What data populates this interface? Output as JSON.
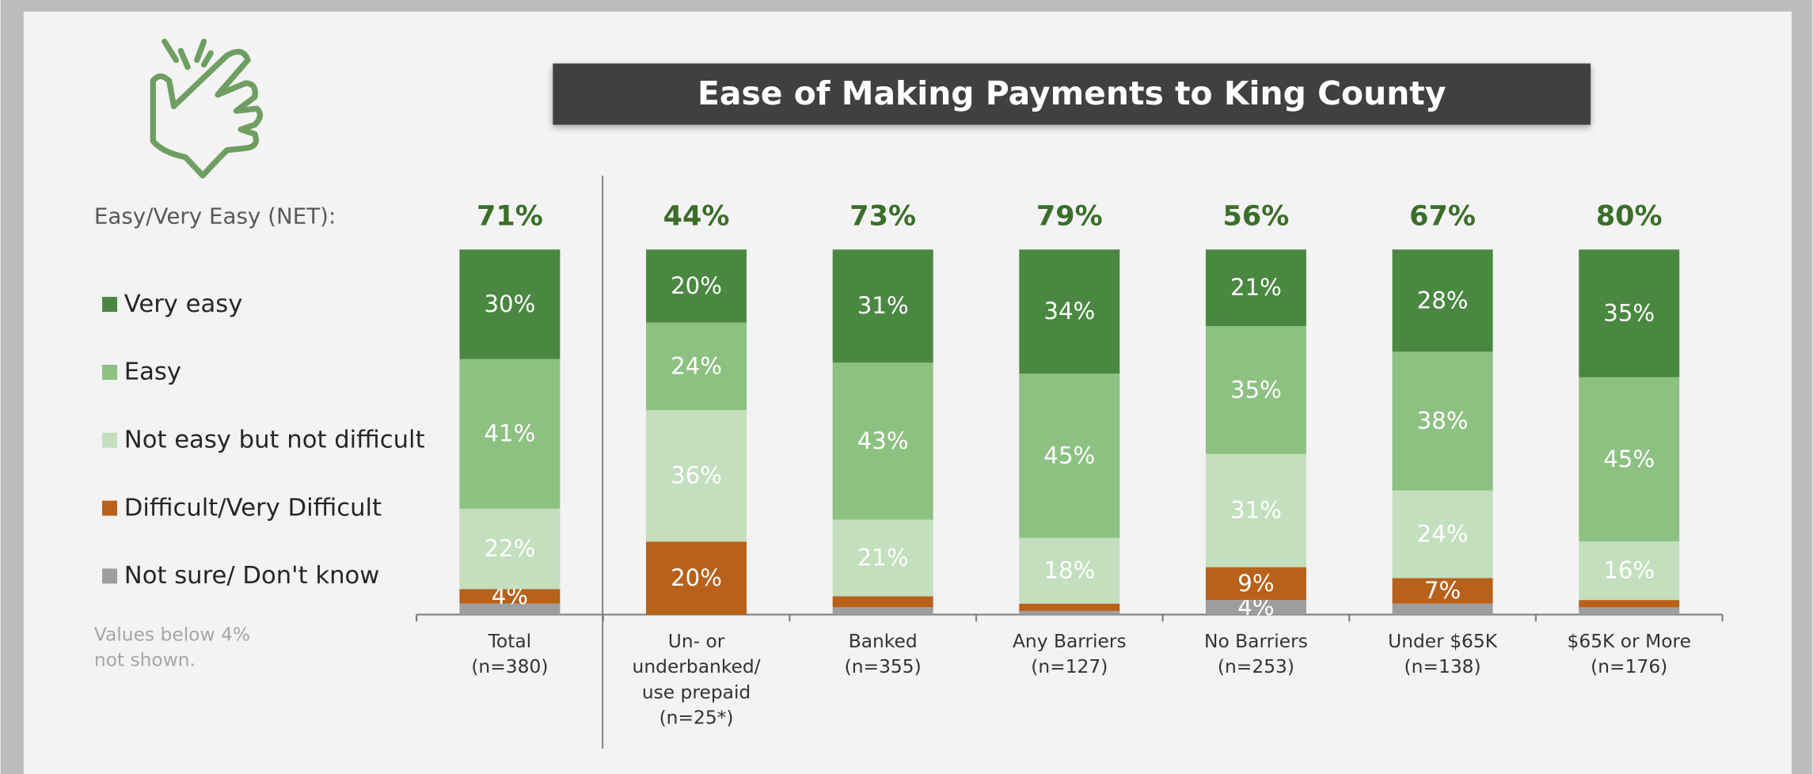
{
  "chart_data": {
    "type": "stacked_bar",
    "title": "Ease of Making Payments to King County",
    "categories": [
      [
        "Total",
        "(n=380)"
      ],
      [
        "Un- or",
        "underbanked/",
        "use prepaid",
        "(n=25*)"
      ],
      [
        "Banked",
        "(n=355)"
      ],
      [
        "Any Barriers",
        "(n=127)"
      ],
      [
        "No Barriers",
        "(n=253)"
      ],
      [
        "Under $65K",
        "(n=138)"
      ],
      [
        "$65K or More",
        "(n=176)"
      ]
    ],
    "series": [
      {
        "name": "Not sure/ Don't know",
        "color": "#9e9e9e",
        "values": [
          3,
          0,
          2,
          1,
          4,
          3,
          2
        ],
        "value_labels": [
          null,
          null,
          null,
          null,
          "4%",
          null,
          null
        ]
      },
      {
        "name": "Difficult/Very Difficult",
        "color": "#b8611a",
        "values": [
          4,
          20,
          3,
          2,
          9,
          7,
          2
        ],
        "value_labels": [
          "4%",
          "20%",
          null,
          null,
          "9%",
          "7%",
          null
        ]
      },
      {
        "name": "Not easy but not difficult",
        "color": "#c3dfbe",
        "values": [
          22,
          36,
          21,
          18,
          31,
          24,
          16
        ],
        "value_labels": [
          "22%",
          "36%",
          "21%",
          "18%",
          "31%",
          "24%",
          "16%"
        ]
      },
      {
        "name": "Easy",
        "color": "#8dc182",
        "values": [
          41,
          24,
          43,
          45,
          35,
          38,
          45
        ],
        "value_labels": [
          "41%",
          "24%",
          "43%",
          "45%",
          "35%",
          "38%",
          "45%"
        ]
      },
      {
        "name": "Very easy",
        "color": "#4a8841",
        "values": [
          30,
          20,
          31,
          34,
          21,
          28,
          35
        ],
        "value_labels": [
          "30%",
          "20%",
          "31%",
          "34%",
          "21%",
          "28%",
          "35%"
        ]
      }
    ],
    "net": {
      "label": "Easy/Very Easy (NET):",
      "values": [
        71,
        44,
        73,
        79,
        56,
        67,
        80
      ],
      "value_labels": [
        "71%",
        "44%",
        "73%",
        "79%",
        "56%",
        "67%",
        "80%"
      ]
    },
    "note": [
      "Values below 4%",
      "not shown."
    ],
    "ylim": [
      0,
      100
    ],
    "legend": "left"
  }
}
